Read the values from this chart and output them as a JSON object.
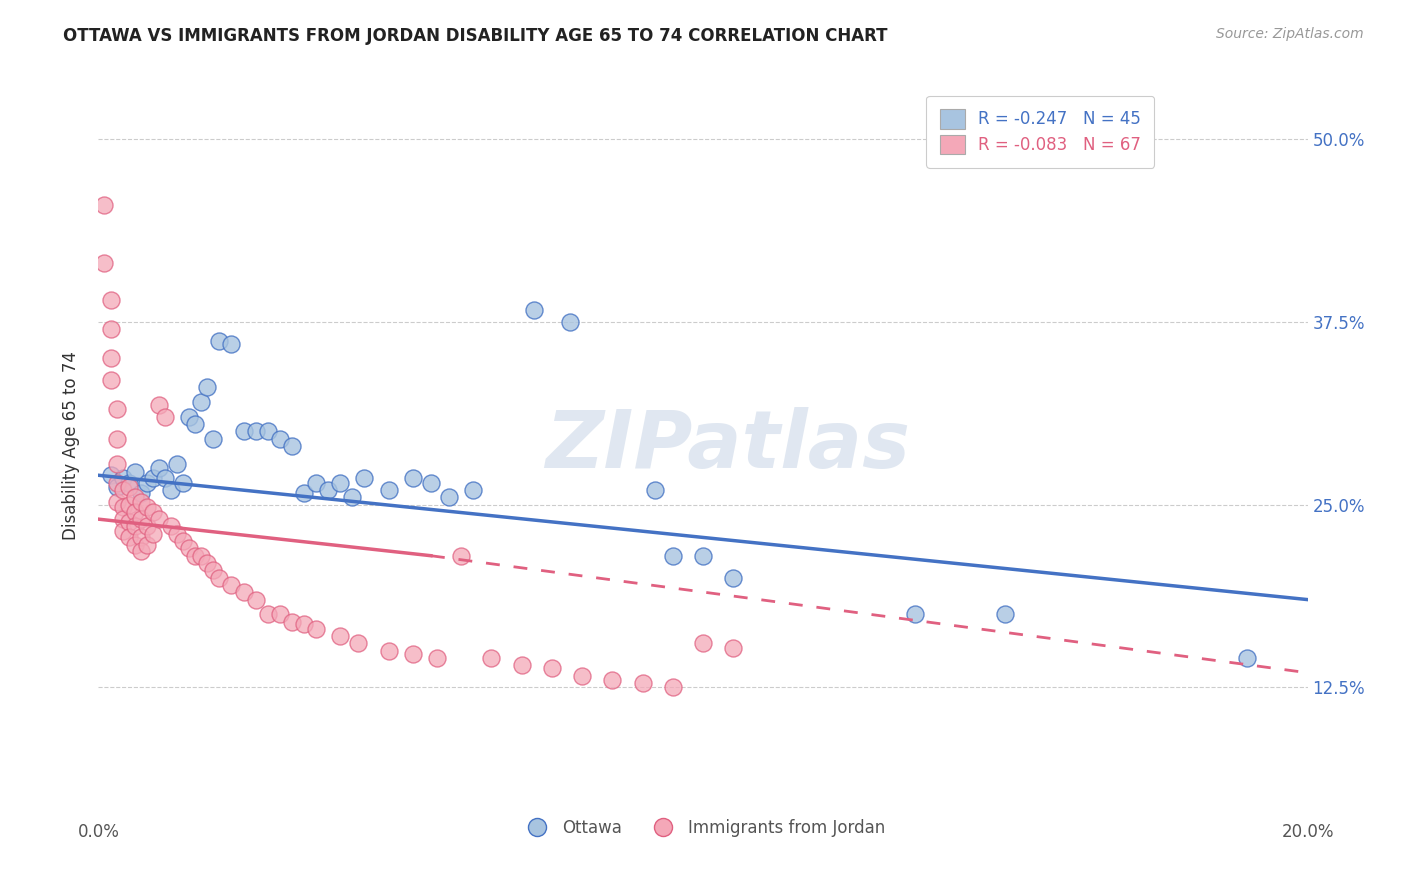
{
  "title": "OTTAWA VS IMMIGRANTS FROM JORDAN DISABILITY AGE 65 TO 74 CORRELATION CHART",
  "source": "Source: ZipAtlas.com",
  "ylabel": "Disability Age 65 to 74",
  "ytick_labels": [
    "12.5%",
    "25.0%",
    "37.5%",
    "50.0%"
  ],
  "ytick_values": [
    0.125,
    0.25,
    0.375,
    0.5
  ],
  "xlim": [
    0.0,
    0.2
  ],
  "ylim": [
    0.04,
    0.54
  ],
  "legend_r_blue": "R = -0.247",
  "legend_n_blue": "N = 45",
  "legend_r_pink": "R = -0.083",
  "legend_n_pink": "N = 67",
  "blue_color": "#a8c4e0",
  "pink_color": "#f4a8b8",
  "blue_line_color": "#4472c4",
  "pink_line_color": "#e06080",
  "watermark": "ZIPatlas",
  "blue_trend": [
    0.0,
    0.27,
    0.2,
    0.185
  ],
  "pink_solid": [
    0.0,
    0.24,
    0.055,
    0.215
  ],
  "pink_dashed": [
    0.055,
    0.215,
    0.2,
    0.135
  ],
  "ottawa_points": [
    [
      0.002,
      0.27
    ],
    [
      0.003,
      0.262
    ],
    [
      0.004,
      0.268
    ],
    [
      0.005,
      0.265
    ],
    [
      0.006,
      0.272
    ],
    [
      0.007,
      0.258
    ],
    [
      0.008,
      0.265
    ],
    [
      0.009,
      0.268
    ],
    [
      0.01,
      0.275
    ],
    [
      0.011,
      0.268
    ],
    [
      0.012,
      0.26
    ],
    [
      0.013,
      0.278
    ],
    [
      0.014,
      0.265
    ],
    [
      0.015,
      0.31
    ],
    [
      0.016,
      0.305
    ],
    [
      0.017,
      0.32
    ],
    [
      0.018,
      0.33
    ],
    [
      0.019,
      0.295
    ],
    [
      0.02,
      0.362
    ],
    [
      0.022,
      0.36
    ],
    [
      0.024,
      0.3
    ],
    [
      0.026,
      0.3
    ],
    [
      0.028,
      0.3
    ],
    [
      0.03,
      0.295
    ],
    [
      0.032,
      0.29
    ],
    [
      0.034,
      0.258
    ],
    [
      0.036,
      0.265
    ],
    [
      0.038,
      0.26
    ],
    [
      0.04,
      0.265
    ],
    [
      0.042,
      0.255
    ],
    [
      0.044,
      0.268
    ],
    [
      0.048,
      0.26
    ],
    [
      0.052,
      0.268
    ],
    [
      0.055,
      0.265
    ],
    [
      0.058,
      0.255
    ],
    [
      0.062,
      0.26
    ],
    [
      0.072,
      0.383
    ],
    [
      0.078,
      0.375
    ],
    [
      0.092,
      0.26
    ],
    [
      0.095,
      0.215
    ],
    [
      0.1,
      0.215
    ],
    [
      0.105,
      0.2
    ],
    [
      0.135,
      0.175
    ],
    [
      0.15,
      0.175
    ],
    [
      0.19,
      0.145
    ]
  ],
  "jordan_points": [
    [
      0.001,
      0.455
    ],
    [
      0.001,
      0.415
    ],
    [
      0.002,
      0.39
    ],
    [
      0.002,
      0.37
    ],
    [
      0.002,
      0.35
    ],
    [
      0.002,
      0.335
    ],
    [
      0.003,
      0.315
    ],
    [
      0.003,
      0.295
    ],
    [
      0.003,
      0.278
    ],
    [
      0.003,
      0.265
    ],
    [
      0.003,
      0.252
    ],
    [
      0.004,
      0.26
    ],
    [
      0.004,
      0.248
    ],
    [
      0.004,
      0.24
    ],
    [
      0.004,
      0.232
    ],
    [
      0.005,
      0.262
    ],
    [
      0.005,
      0.25
    ],
    [
      0.005,
      0.238
    ],
    [
      0.005,
      0.228
    ],
    [
      0.006,
      0.255
    ],
    [
      0.006,
      0.245
    ],
    [
      0.006,
      0.235
    ],
    [
      0.006,
      0.222
    ],
    [
      0.007,
      0.252
    ],
    [
      0.007,
      0.24
    ],
    [
      0.007,
      0.228
    ],
    [
      0.007,
      0.218
    ],
    [
      0.008,
      0.248
    ],
    [
      0.008,
      0.235
    ],
    [
      0.008,
      0.222
    ],
    [
      0.009,
      0.245
    ],
    [
      0.009,
      0.23
    ],
    [
      0.01,
      0.318
    ],
    [
      0.01,
      0.24
    ],
    [
      0.011,
      0.31
    ],
    [
      0.012,
      0.235
    ],
    [
      0.013,
      0.23
    ],
    [
      0.014,
      0.225
    ],
    [
      0.015,
      0.22
    ],
    [
      0.016,
      0.215
    ],
    [
      0.017,
      0.215
    ],
    [
      0.018,
      0.21
    ],
    [
      0.019,
      0.205
    ],
    [
      0.02,
      0.2
    ],
    [
      0.022,
      0.195
    ],
    [
      0.024,
      0.19
    ],
    [
      0.026,
      0.185
    ],
    [
      0.028,
      0.175
    ],
    [
      0.03,
      0.175
    ],
    [
      0.032,
      0.17
    ],
    [
      0.034,
      0.168
    ],
    [
      0.036,
      0.165
    ],
    [
      0.04,
      0.16
    ],
    [
      0.043,
      0.155
    ],
    [
      0.048,
      0.15
    ],
    [
      0.052,
      0.148
    ],
    [
      0.056,
      0.145
    ],
    [
      0.06,
      0.215
    ],
    [
      0.065,
      0.145
    ],
    [
      0.07,
      0.14
    ],
    [
      0.075,
      0.138
    ],
    [
      0.08,
      0.133
    ],
    [
      0.085,
      0.13
    ],
    [
      0.09,
      0.128
    ],
    [
      0.095,
      0.125
    ],
    [
      0.1,
      0.155
    ],
    [
      0.105,
      0.152
    ]
  ]
}
